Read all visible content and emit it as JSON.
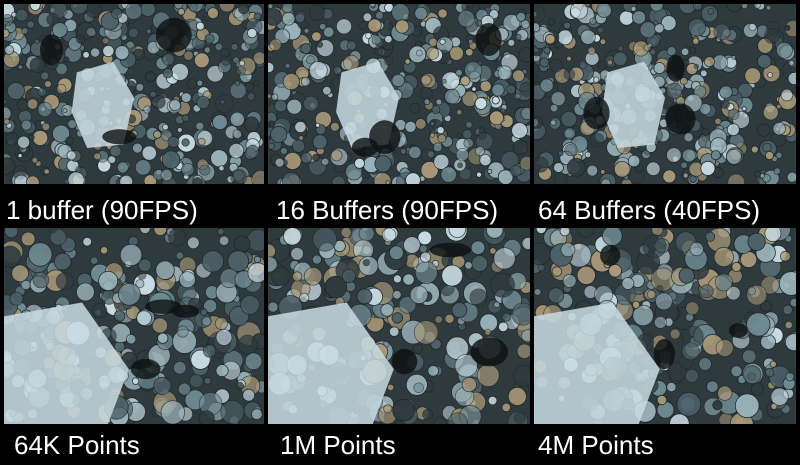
{
  "panels": [
    {
      "caption": "1 buffer (90FPS)"
    },
    {
      "caption": "16 Buffers (90FPS)"
    },
    {
      "caption": "64 Buffers (40FPS)"
    },
    {
      "caption": "64K Points"
    },
    {
      "caption": "1M Points"
    },
    {
      "caption": "4M Points"
    }
  ],
  "colors": {
    "background": "#000000",
    "fractal_dark": "#2e3a3e",
    "fractal_mid": "#6f8a92",
    "fractal_light": "#c9dce3",
    "fractal_warm": "#a89878",
    "caption_text": "#ffffff"
  }
}
